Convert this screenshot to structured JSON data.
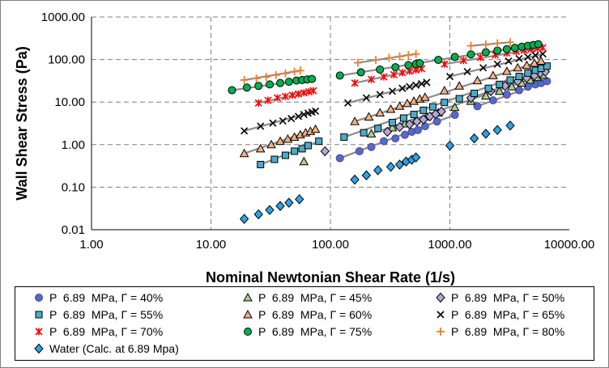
{
  "chart_data": {
    "type": "scatter",
    "xlabel": "Nominal Newtonian Shear Rate (1/s)",
    "ylabel": "Wall Shear Stress (Pa)",
    "xscale": "log",
    "yscale": "log",
    "xlim": [
      1,
      10000
    ],
    "ylim": [
      0.01,
      1000
    ],
    "x_ticks": [
      "1.00",
      "10.00",
      "100.00",
      "1000.00",
      "10000.00"
    ],
    "y_ticks": [
      "0.01",
      "0.10",
      "1.00",
      "10.00",
      "100.00",
      "1000.00"
    ],
    "grid": true,
    "legend_position": "bottom",
    "series": [
      {
        "name": "P  6.89  MPa, Γ = 40%",
        "marker": "circle",
        "color": "#7030a0",
        "fill": "#4472c4",
        "x": [
          120,
          175,
          220,
          280,
          350,
          420,
          480,
          540,
          620,
          780,
          1100,
          1700,
          2300,
          3000,
          3800,
          4500,
          5200,
          5800,
          6500
        ],
        "y": [
          0.48,
          0.7,
          0.88,
          1.2,
          1.4,
          1.7,
          2.0,
          2.2,
          2.7,
          3.5,
          5.0,
          8.0,
          11,
          15,
          19,
          23,
          26,
          28,
          31
        ]
      },
      {
        "name": "P  6.89  MPa, Γ = 45%",
        "marker": "triangle",
        "color": "#000000",
        "fill": "#a9d18e",
        "x": [
          60,
          220,
          330,
          420,
          520,
          640,
          800,
          1100,
          1500,
          2000,
          2600,
          3300,
          4000,
          4700,
          5400,
          6000
        ],
        "y": [
          0.4,
          1.8,
          2.5,
          3.1,
          3.7,
          4.5,
          5.6,
          7.5,
          10.5,
          14,
          18,
          23,
          28,
          33,
          38,
          43
        ]
      },
      {
        "name": "P  6.89  MPa, Γ = 50%",
        "marker": "diamond",
        "color": "#000000",
        "fill": "#b4a7d6",
        "x": [
          90,
          300,
          380,
          460,
          530,
          600,
          680,
          760,
          850,
          1500,
          2200,
          2900,
          3700,
          4400,
          5100,
          5700,
          6300
        ],
        "y": [
          0.7,
          2.0,
          2.6,
          3.0,
          3.5,
          3.9,
          4.6,
          5.2,
          6.0,
          12.5,
          18,
          24,
          31,
          37,
          42,
          48,
          52
        ]
      },
      {
        "name": "P  6.89  MPa, Γ = 55%",
        "marker": "square",
        "color": "#000000",
        "fill": "#4bacc6",
        "x": [
          26,
          34,
          42,
          50,
          58,
          65,
          80,
          130,
          190,
          250,
          330,
          410,
          500,
          600,
          720,
          900,
          1200,
          1600,
          2100,
          2600,
          3200,
          3800,
          4500,
          5200,
          5800,
          6500
        ],
        "y": [
          0.34,
          0.45,
          0.56,
          0.7,
          0.8,
          0.95,
          1.2,
          1.5,
          1.9,
          2.4,
          3.3,
          4.2,
          5.1,
          6.4,
          7.7,
          9.8,
          12,
          16,
          21,
          26,
          33,
          40,
          48,
          56,
          62,
          70
        ]
      },
      {
        "name": "P  6.89  MPa, Γ = 60%",
        "marker": "triangle",
        "color": "#000000",
        "fill": "#f4b183",
        "x": [
          19,
          26,
          32,
          38,
          44,
          50,
          56,
          62,
          68,
          75,
          160,
          210,
          260,
          320,
          380,
          440,
          500,
          560,
          620,
          900,
          1200,
          1700,
          2300,
          3000,
          3700,
          4400,
          5100,
          5800
        ],
        "y": [
          0.62,
          0.8,
          1.0,
          1.2,
          1.35,
          1.5,
          1.7,
          1.9,
          2.05,
          2.3,
          3.5,
          4.5,
          5.6,
          6.8,
          8.0,
          9.3,
          10.5,
          11.8,
          13,
          18.5,
          24,
          32,
          42,
          53,
          64,
          73,
          82,
          92
        ]
      },
      {
        "name": "P  6.89  MPa, Γ = 65%",
        "marker": "x",
        "color": "#000000",
        "fill": "none",
        "x": [
          19,
          26,
          33,
          40,
          47,
          54,
          60,
          65,
          70,
          75,
          140,
          200,
          260,
          330,
          400,
          460,
          520,
          580,
          640,
          1000,
          1400,
          1900,
          2500,
          3100,
          3800,
          4500,
          5200,
          6000
        ],
        "y": [
          2.1,
          2.7,
          3.2,
          3.6,
          4.1,
          4.6,
          5.1,
          5.5,
          5.8,
          6.1,
          9.5,
          12.5,
          15,
          18,
          21,
          23,
          25,
          27,
          29,
          40,
          52,
          64,
          78,
          92,
          105,
          115,
          125,
          135
        ]
      },
      {
        "name": "P  6.89  MPa, Γ = 70%",
        "marker": "star",
        "color": "#ff0000",
        "fill": "none",
        "x": [
          25,
          30,
          36,
          42,
          48,
          54,
          60,
          66,
          72,
          160,
          220,
          280,
          340,
          400,
          460,
          520,
          580,
          900,
          1300,
          1800,
          2400,
          3000,
          3600,
          4200,
          4800,
          5400,
          6000
        ],
        "y": [
          9.5,
          11,
          12.5,
          13.5,
          14.5,
          15.5,
          16.5,
          17.5,
          18.5,
          28,
          34,
          39,
          44,
          49,
          53,
          57,
          61,
          78,
          95,
          112,
          128,
          142,
          155,
          165,
          175,
          183,
          190
        ]
      },
      {
        "name": "P  6.89  MPa, Γ = 75%",
        "marker": "circle",
        "color": "#000000",
        "fill": "#00b050",
        "x": [
          15,
          20,
          25,
          31,
          38,
          45,
          52,
          58,
          64,
          70,
          120,
          180,
          260,
          350,
          450,
          520,
          560,
          800,
          1100,
          1500,
          2000,
          2500,
          3000,
          3500,
          4000,
          4500,
          5000,
          5500
        ],
        "y": [
          19,
          22,
          24,
          26,
          28,
          30,
          32,
          33,
          34,
          35,
          42,
          50,
          58,
          66,
          74,
          79,
          82,
          98,
          115,
          132,
          148,
          162,
          175,
          188,
          200,
          210,
          220,
          230
        ]
      },
      {
        "name": "P  6.89  MPa, Γ = 80%",
        "marker": "plus",
        "color": "#ed7d31",
        "fill": "none",
        "x": [
          19,
          24,
          29,
          35,
          42,
          50,
          56,
          170,
          240,
          310,
          380,
          450,
          520,
          1500,
          2000,
          2500,
          3200
        ],
        "y": [
          33,
          36,
          39,
          43,
          47,
          52,
          55,
          84,
          98,
          109,
          118,
          127,
          135,
          210,
          225,
          240,
          255
        ]
      },
      {
        "name": "Water (Calc. at 6.89 Mpa)",
        "marker": "diamond",
        "color": "#000000",
        "fill": "#2fa3e6",
        "x": [
          19,
          25,
          31,
          38,
          45,
          55,
          160,
          200,
          250,
          320,
          380,
          430,
          480,
          520,
          1000,
          1600,
          2000,
          2500,
          3200
        ],
        "y": [
          0.018,
          0.023,
          0.029,
          0.036,
          0.043,
          0.052,
          0.15,
          0.19,
          0.25,
          0.3,
          0.34,
          0.4,
          0.44,
          0.5,
          0.95,
          1.4,
          1.8,
          2.2,
          2.8
        ]
      }
    ]
  }
}
